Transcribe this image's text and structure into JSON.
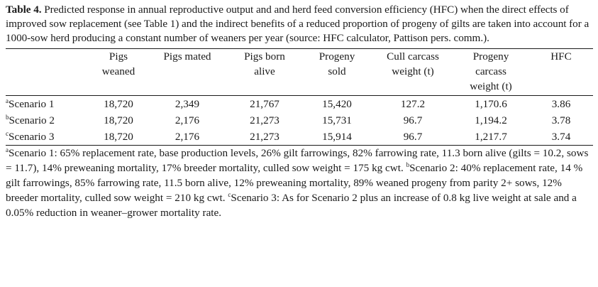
{
  "caption": {
    "label": "Table 4.",
    "text": " Predicted response in annual reproductive output and and herd feed conversion efficiency (HFC) when the direct effects of improved sow replacement (see Table 1) and the indirect benefits of a reduced proportion of progeny of gilts are taken into account for a 1000-sow herd producing a constant number of weaners per year (source: HFC calculator, Pattison pers. comm.)."
  },
  "columns": [
    {
      "line1": "",
      "line2": "",
      "line3": ""
    },
    {
      "line1": "Pigs",
      "line2": "weaned",
      "line3": ""
    },
    {
      "line1": "Pigs mated",
      "line2": "",
      "line3": ""
    },
    {
      "line1": "Pigs born",
      "line2": "alive",
      "line3": ""
    },
    {
      "line1": "Progeny",
      "line2": "sold",
      "line3": ""
    },
    {
      "line1": "Cull carcass",
      "line2": "weight (t)",
      "line3": ""
    },
    {
      "line1": "Progeny",
      "line2": "carcass",
      "line3": "weight (t)"
    },
    {
      "line1": "HFC",
      "line2": "",
      "line3": ""
    }
  ],
  "rows": [
    {
      "sup": "a",
      "label": "Scenario 1",
      "cells": [
        "18,720",
        "2,349",
        "21,767",
        "15,420",
        "127.2",
        "1,170.6",
        "3.86"
      ]
    },
    {
      "sup": "b",
      "label": "Scenario 2",
      "cells": [
        "18,720",
        "2,176",
        "21,273",
        "15,731",
        "96.7",
        "1,194.2",
        "3.78"
      ]
    },
    {
      "sup": "c",
      "label": "Scenario 3",
      "cells": [
        "18,720",
        "2,176",
        "21,273",
        "15,914",
        "96.7",
        "1,217.7",
        "3.74"
      ]
    }
  ],
  "footnotes": [
    {
      "sup": "a",
      "text": "Scenario 1: 65% replacement rate, base production levels, 26% gilt farrowings, 82% farrowing rate, 11.3 born alive (gilts = 10.2, sows = 11.7), 14% preweaning mortality, 17% breeder mortality, culled sow weight = 175 kg cwt. "
    },
    {
      "sup": "b",
      "text": "Scenario 2: 40% replacement rate, 14 % gilt farrowings, 85% farrowing rate, 11.5 born alive, 12% preweaning mortality, 89% weaned progeny from parity 2+ sows, 12% breeder mortality, culled sow weight = 210 kg cwt. "
    },
    {
      "sup": "c",
      "text": "Scenario 3: As for Scenario 2 plus an increase of 0.8 kg live weight at sale and a 0.05% reduction in weaner–grower mortality rate."
    }
  ]
}
